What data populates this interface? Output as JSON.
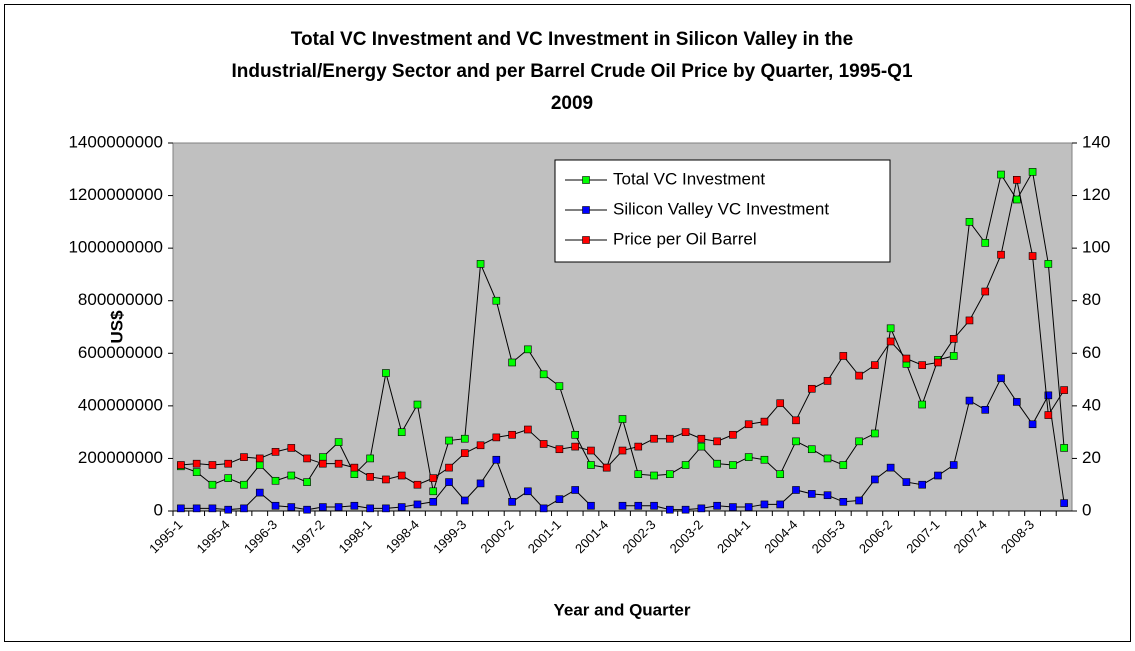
{
  "chart_data": {
    "type": "line",
    "title": [
      "Total VC Investment and VC Investment in Silicon Valley in the",
      "Industrial/Energy Sector and per Barrel Crude Oil Price by Quarter, 1995-Q1",
      "2009"
    ],
    "xlabel": "Year and Quarter",
    "ylabel": "US$",
    "categories": [
      "1995-1",
      null,
      null,
      "1995-4",
      null,
      null,
      "1996-3",
      null,
      null,
      "1997-2",
      null,
      null,
      "1998-1",
      null,
      null,
      "1998-4",
      null,
      null,
      "1999-3",
      null,
      null,
      "2000-2",
      null,
      null,
      "2001-1",
      null,
      null,
      "2001-4",
      null,
      null,
      "2002-3",
      null,
      null,
      "2003-2",
      null,
      null,
      "2004-1",
      null,
      null,
      "2004-4",
      null,
      null,
      "2005-3",
      null,
      null,
      "2006-2",
      null,
      null,
      "2007-1",
      null,
      null,
      "2007-4",
      null,
      null,
      "2008-3",
      null,
      null
    ],
    "ylim": [
      0,
      1400000000
    ],
    "yticks": [
      0,
      200000000,
      400000000,
      600000000,
      800000000,
      1000000000,
      1200000000,
      1400000000
    ],
    "y2lim": [
      0,
      140
    ],
    "y2ticks": [
      0,
      20,
      40,
      60,
      80,
      100,
      120,
      140
    ],
    "legend": "top-center",
    "background": "#c0c0c0",
    "series": [
      {
        "name": "Total VC Investment",
        "color": "#00ff00",
        "values": [
          170000000,
          148000000,
          100000000,
          125000000,
          100000000,
          175000000,
          115000000,
          135000000,
          110000000,
          205000000,
          262000000,
          140000000,
          200000000,
          525000000,
          300000000,
          405000000,
          75000000,
          268000000,
          275000000,
          940000000,
          800000000,
          565000000,
          615000000,
          520000000,
          475000000,
          290000000,
          175000000,
          165000000,
          350000000,
          140000000,
          135000000,
          140000000,
          175000000,
          245000000,
          180000000,
          175000000,
          205000000,
          195000000,
          140000000,
          265000000,
          235000000,
          200000000,
          175000000,
          265000000,
          295000000,
          695000000,
          560000000,
          405000000,
          575000000,
          590000000,
          1100000000,
          1020000000,
          1280000000,
          1185000000,
          1290000000,
          940000000,
          240000000
        ]
      },
      {
        "name": "Silicon Valley VC Investment",
        "color": "#0000ff",
        "values": [
          10000000,
          10000000,
          10000000,
          5000000,
          10000000,
          70000000,
          20000000,
          15000000,
          5000000,
          15000000,
          15000000,
          20000000,
          10000000,
          10000000,
          15000000,
          25000000,
          35000000,
          110000000,
          40000000,
          105000000,
          195000000,
          35000000,
          75000000,
          10000000,
          45000000,
          80000000,
          20000000,
          null,
          20000000,
          20000000,
          20000000,
          5000000,
          5000000,
          10000000,
          20000000,
          15000000,
          15000000,
          25000000,
          25000000,
          80000000,
          65000000,
          60000000,
          35000000,
          40000000,
          120000000,
          165000000,
          110000000,
          100000000,
          135000000,
          175000000,
          420000000,
          385000000,
          505000000,
          415000000,
          330000000,
          440000000,
          30000000
        ]
      },
      {
        "name": "Price per Oil Barrel",
        "color": "#ff0000",
        "axis": "y2",
        "values": [
          17.5,
          18,
          17.5,
          18,
          20.5,
          20,
          22.5,
          24,
          20,
          18,
          18,
          16.5,
          13,
          12,
          13.5,
          10,
          12.5,
          16.5,
          22,
          25,
          28,
          29,
          31,
          25.5,
          23.5,
          24.5,
          23,
          16.5,
          23,
          24.5,
          27.5,
          27.5,
          30,
          27.5,
          26.5,
          29,
          33,
          34,
          41,
          34.5,
          46.5,
          49.5,
          59,
          51.5,
          55.5,
          64.5,
          58,
          55.5,
          56.5,
          65.5,
          72.5,
          83.5,
          97.5,
          126,
          97,
          36.5,
          46
        ]
      }
    ]
  }
}
